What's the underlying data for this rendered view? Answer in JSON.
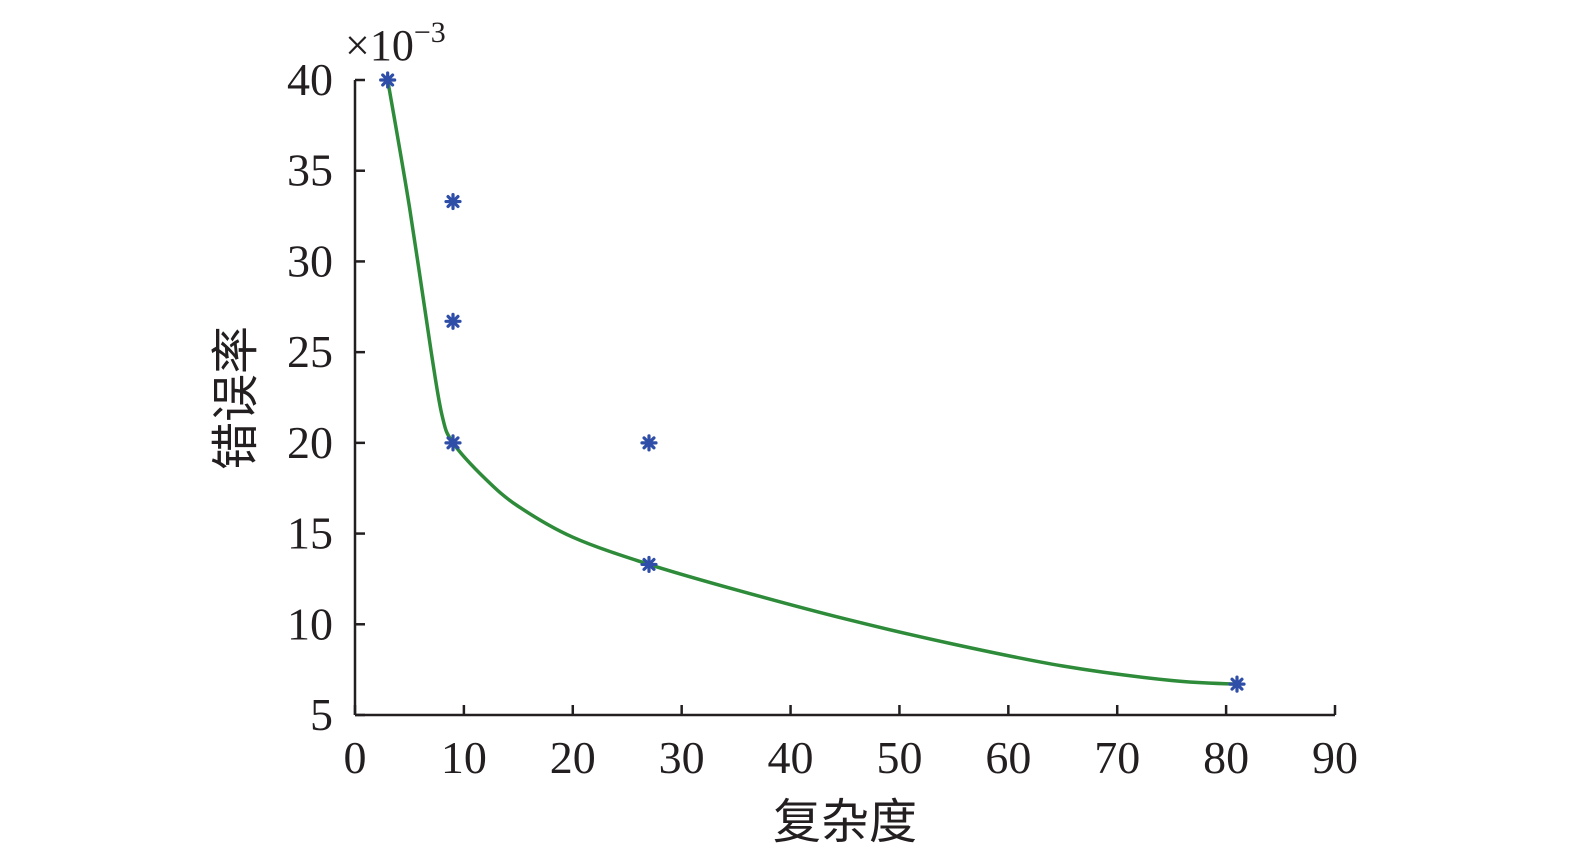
{
  "chart_data": {
    "type": "scatter",
    "xlabel": "复杂度",
    "ylabel": "错误率",
    "y_multiplier": "×10",
    "y_multiplier_exponent": "−3",
    "xlim": [
      0,
      90
    ],
    "ylim": [
      5,
      40
    ],
    "x_ticks": [
      "0",
      "10",
      "20",
      "30",
      "40",
      "50",
      "60",
      "70",
      "80",
      "90"
    ],
    "y_ticks": [
      "5",
      "10",
      "15",
      "20",
      "25",
      "30",
      "35",
      "40"
    ],
    "grid": false,
    "legend": "none",
    "series": [
      {
        "kind": "scatter",
        "marker": "asterisk",
        "color": "#2f4ea8",
        "points": [
          {
            "x": 3,
            "y": 40
          },
          {
            "x": 9,
            "y": 33.3
          },
          {
            "x": 9,
            "y": 26.7
          },
          {
            "x": 9,
            "y": 20
          },
          {
            "x": 27,
            "y": 20
          },
          {
            "x": 27,
            "y": 13.3
          },
          {
            "x": 81,
            "y": 6.7
          }
        ]
      },
      {
        "kind": "line",
        "color": "#2e8b3a",
        "points": [
          {
            "x": 3,
            "y": 40
          },
          {
            "x": 5,
            "y": 33
          },
          {
            "x": 7,
            "y": 25
          },
          {
            "x": 8,
            "y": 21.5
          },
          {
            "x": 9,
            "y": 20
          },
          {
            "x": 12,
            "y": 18
          },
          {
            "x": 15,
            "y": 16.5
          },
          {
            "x": 20,
            "y": 14.8
          },
          {
            "x": 27,
            "y": 13.3
          },
          {
            "x": 35,
            "y": 11.9
          },
          {
            "x": 45,
            "y": 10.3
          },
          {
            "x": 55,
            "y": 8.9
          },
          {
            "x": 65,
            "y": 7.7
          },
          {
            "x": 75,
            "y": 6.9
          },
          {
            "x": 81,
            "y": 6.7
          }
        ]
      }
    ]
  }
}
